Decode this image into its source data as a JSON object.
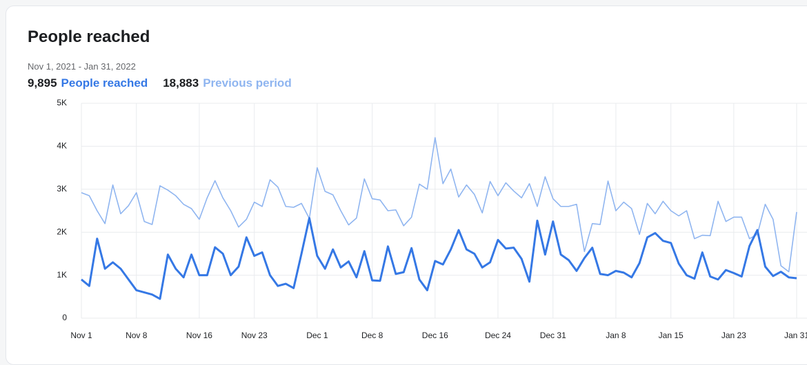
{
  "chart_data": {
    "type": "line",
    "title": "People reached",
    "subtitle": "Nov 1, 2021 - Jan 31, 2022",
    "categories": [
      "Nov 1",
      null,
      null,
      null,
      null,
      null,
      null,
      "Nov 8",
      null,
      null,
      null,
      null,
      null,
      null,
      null,
      "Nov 16",
      null,
      null,
      null,
      null,
      null,
      null,
      "Nov 23",
      null,
      null,
      null,
      null,
      null,
      null,
      null,
      "Dec 1",
      null,
      null,
      null,
      null,
      null,
      null,
      "Dec 8",
      null,
      null,
      null,
      null,
      null,
      null,
      null,
      "Dec 16",
      null,
      null,
      null,
      null,
      null,
      null,
      null,
      "Dec 24",
      null,
      null,
      null,
      null,
      null,
      null,
      "Dec 31",
      null,
      null,
      null,
      null,
      null,
      null,
      null,
      "Jan 8",
      null,
      null,
      null,
      null,
      null,
      null,
      "Jan 15",
      null,
      null,
      null,
      null,
      null,
      null,
      null,
      "Jan 23",
      null,
      null,
      null,
      null,
      null,
      null,
      null,
      "Jan 31"
    ],
    "series": [
      {
        "name": "People reached",
        "color": "#3578e5",
        "total": 9895,
        "total_label": "9,895",
        "values": [
          900,
          750,
          1850,
          1150,
          1300,
          1150,
          900,
          650,
          600,
          550,
          450,
          1480,
          1150,
          950,
          1480,
          1000,
          1000,
          1650,
          1500,
          1000,
          1200,
          1880,
          1450,
          1530,
          1000,
          750,
          800,
          700,
          1500,
          2330,
          1450,
          1150,
          1600,
          1180,
          1320,
          950,
          1560,
          880,
          870,
          1670,
          1030,
          1070,
          1630,
          900,
          650,
          1330,
          1250,
          1600,
          2050,
          1600,
          1500,
          1180,
          1300,
          1820,
          1620,
          1640,
          1380,
          850,
          2270,
          1480,
          2250,
          1480,
          1350,
          1100,
          1400,
          1640,
          1030,
          1000,
          1100,
          1060,
          950,
          1280,
          1880,
          1980,
          1800,
          1750,
          1270,
          1000,
          920,
          1530,
          970,
          900,
          1120,
          1050,
          970,
          1680,
          2050,
          1200,
          980,
          1080,
          950,
          930
        ]
      },
      {
        "name": "Previous period",
        "color": "#8fb5f0",
        "total": 18883,
        "total_label": "18,883",
        "values": [
          2920,
          2850,
          2500,
          2200,
          3100,
          2430,
          2620,
          2920,
          2250,
          2180,
          3080,
          2980,
          2850,
          2650,
          2550,
          2300,
          2800,
          3200,
          2800,
          2500,
          2120,
          2300,
          2700,
          2600,
          3220,
          3050,
          2600,
          2580,
          2670,
          2320,
          3500,
          2950,
          2870,
          2500,
          2170,
          2330,
          3240,
          2780,
          2750,
          2500,
          2520,
          2150,
          2350,
          3120,
          3000,
          4200,
          3130,
          3470,
          2820,
          3100,
          2880,
          2450,
          3180,
          2850,
          3150,
          2960,
          2800,
          3130,
          2600,
          3290,
          2780,
          2600,
          2600,
          2650,
          1550,
          2200,
          2180,
          3190,
          2500,
          2700,
          2550,
          1950,
          2670,
          2430,
          2720,
          2500,
          2380,
          2500,
          1850,
          1930,
          1920,
          2720,
          2250,
          2350,
          2350,
          1850,
          1950,
          2650,
          2300,
          1220,
          1080,
          2470
        ]
      }
    ],
    "ylim": [
      0,
      5000
    ],
    "yticks": [
      0,
      {
        "value": 1000,
        "label": "1K"
      },
      {
        "value": 2000,
        "label": "2K"
      },
      {
        "value": 3000,
        "label": "3K"
      },
      {
        "value": 4000,
        "label": "4K"
      },
      {
        "value": 5000,
        "label": "5K"
      }
    ],
    "grid": true
  }
}
